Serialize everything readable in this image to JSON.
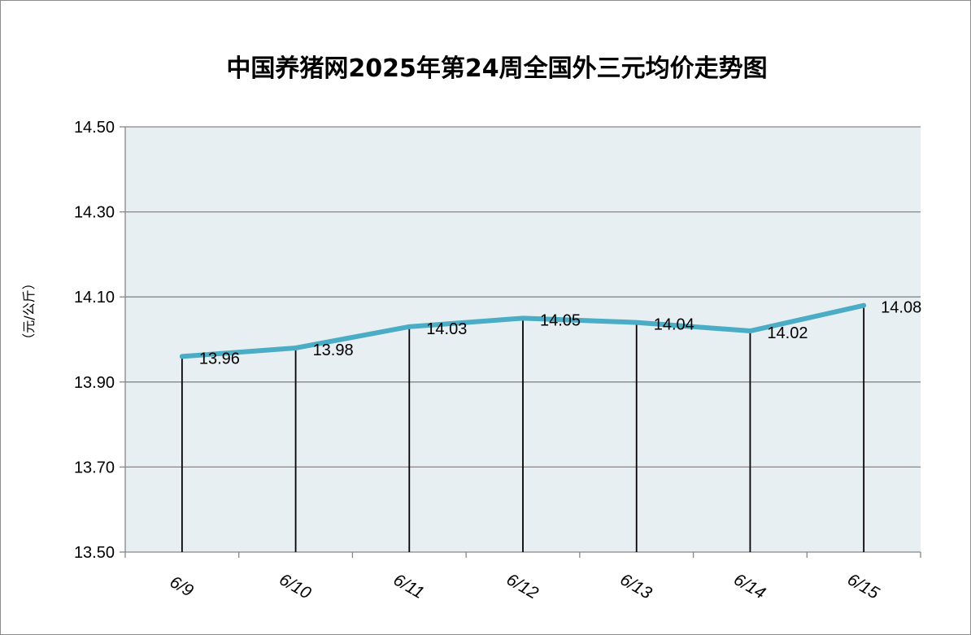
{
  "chart_data": {
    "type": "line",
    "title": "中国养猪网2025年第24周全国外三元均价走势图",
    "xlabel": "",
    "ylabel": "（元/公斤）",
    "categories": [
      "6/9",
      "6/10",
      "6/11",
      "6/12",
      "6/13",
      "6/14",
      "6/15"
    ],
    "values": [
      13.96,
      13.98,
      14.03,
      14.05,
      14.04,
      14.02,
      14.08
    ],
    "ylim": [
      13.5,
      14.5
    ],
    "yticks": [
      13.5,
      13.7,
      13.9,
      14.1,
      14.3,
      14.5
    ],
    "ytick_labels": [
      "13.50",
      "13.70",
      "13.90",
      "14.10",
      "14.30",
      "14.50"
    ],
    "data_labels": [
      "13.96",
      "13.98",
      "14.03",
      "14.05",
      "14.04",
      "14.02",
      "14.08"
    ],
    "grid": true,
    "drop_lines": true,
    "colors": {
      "line": "#4bacc6",
      "plot_bg": "#e8eff3",
      "grid": "#868686"
    }
  }
}
